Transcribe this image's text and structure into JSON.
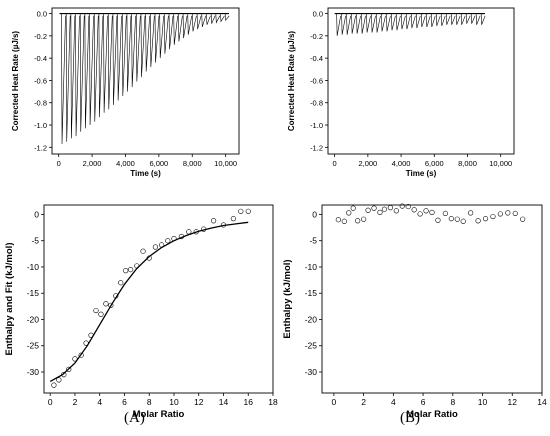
{
  "panel_labels": [
    "(A)",
    "(B)"
  ],
  "chart_data": [
    {
      "type": "line",
      "panel": "A-top",
      "xlabel": "Time (s)",
      "ylabel": "Corrected Heat Rate (µJ/s)",
      "xlim": [
        -400,
        10800
      ],
      "ylim": [
        -1.26,
        0.05
      ],
      "xticks": [
        0,
        2000,
        4000,
        6000,
        8000,
        10000
      ],
      "xtick_labels": [
        "0",
        "2,000",
        "4,000",
        "6,000",
        "8,000",
        "10,000"
      ],
      "yticks": [
        0.0,
        -0.2,
        -0.4,
        -0.6,
        -0.8,
        -1.0,
        -1.2
      ],
      "ytick_labels": [
        "0.0",
        "-0.2",
        "-0.4",
        "-0.6",
        "-0.8",
        "-1.0",
        "-1.2"
      ],
      "series": [
        {
          "x": [
            200,
            480,
            760,
            1040,
            1320,
            1600,
            1880,
            2160,
            2440,
            2720,
            3000,
            3280,
            3560,
            3840,
            4120,
            4400,
            4680,
            4960,
            5240,
            5520,
            5800,
            6080,
            6360,
            6640,
            6920,
            7200,
            7480,
            7760,
            8040,
            8320,
            8600,
            8880,
            9160,
            9440,
            9720,
            10000
          ],
          "values": [
            -1.17,
            -1.15,
            -1.12,
            -1.1,
            -1.06,
            -1.03,
            -1.0,
            -0.97,
            -0.93,
            -0.89,
            -0.86,
            -0.82,
            -0.78,
            -0.74,
            -0.7,
            -0.66,
            -0.61,
            -0.57,
            -0.52,
            -0.48,
            -0.44,
            -0.4,
            -0.36,
            -0.32,
            -0.28,
            -0.25,
            -0.22,
            -0.19,
            -0.16,
            -0.14,
            -0.12,
            -0.1,
            -0.09,
            -0.08,
            -0.07,
            -0.06
          ]
        }
      ]
    },
    {
      "type": "line",
      "panel": "B-top",
      "xlabel": "Time (s)",
      "ylabel": "Corrected Heat Rate (µJ/s)",
      "xlim": [
        -400,
        10800
      ],
      "ylim": [
        -1.26,
        0.05
      ],
      "xticks": [
        0,
        2000,
        4000,
        6000,
        8000,
        10000
      ],
      "xtick_labels": [
        "0",
        "2,000",
        "4,000",
        "6,000",
        "8,000",
        "10,000"
      ],
      "yticks": [
        0.0,
        -0.2,
        -0.4,
        -0.6,
        -0.8,
        -1.0,
        -1.2
      ],
      "ytick_labels": [
        "0.0",
        "-0.2",
        "-0.4",
        "-0.6",
        "-0.8",
        "-1.0",
        "-1.2"
      ],
      "series": [
        {
          "x": [
            150,
            450,
            750,
            1050,
            1350,
            1650,
            1950,
            2250,
            2550,
            2850,
            3150,
            3450,
            3750,
            4050,
            4350,
            4650,
            4950,
            5250,
            5550,
            5850,
            6150,
            6450,
            6750,
            7050,
            7350,
            7650,
            7950,
            8250,
            8550,
            8850
          ],
          "values": [
            -0.2,
            -0.19,
            -0.19,
            -0.18,
            -0.18,
            -0.18,
            -0.17,
            -0.17,
            -0.17,
            -0.16,
            -0.16,
            -0.15,
            -0.15,
            -0.14,
            -0.14,
            -0.13,
            -0.13,
            -0.12,
            -0.12,
            -0.12,
            -0.11,
            -0.11,
            -0.1,
            -0.1,
            -0.1,
            -0.1,
            -0.09,
            -0.09,
            -0.1,
            -0.1
          ]
        }
      ]
    },
    {
      "type": "scatter",
      "panel": "A-bottom",
      "xlabel": "Molar Ratio",
      "ylabel": "Enthalpy and Fit (kJ/mol)",
      "xlim": [
        -0.5,
        18
      ],
      "ylim": [
        -34,
        1.8
      ],
      "xticks": [
        0,
        2,
        4,
        6,
        8,
        10,
        12,
        14,
        16,
        18
      ],
      "xtick_labels": [
        "0",
        "2",
        "4",
        "6",
        "8",
        "10",
        "12",
        "14",
        "16",
        "18"
      ],
      "yticks": [
        0,
        -5,
        -10,
        -15,
        -20,
        -25,
        -30
      ],
      "ytick_labels": [
        "0",
        "-5",
        "-10",
        "-15",
        "-20",
        "-25",
        "-30"
      ],
      "series": [
        {
          "x": [
            0.3,
            0.7,
            1.1,
            1.5,
            2.0,
            2.5,
            2.9,
            3.3,
            3.7,
            4.1,
            4.5,
            4.9,
            5.3,
            5.7,
            6.1,
            6.5,
            7.0,
            7.5,
            8.0,
            8.5,
            9.0,
            9.5,
            10.0,
            10.6,
            11.2,
            11.8,
            12.4,
            13.2,
            14.0,
            14.8,
            15.4,
            16.0
          ],
          "values": [
            -32.5,
            -31.5,
            -30.5,
            -29.5,
            -27.5,
            -26.8,
            -24.5,
            -23.0,
            -18.3,
            -19.0,
            -17.0,
            -17.3,
            -15.5,
            -13.0,
            -10.7,
            -10.5,
            -9.8,
            -7.0,
            -8.3,
            -6.2,
            -5.8,
            -5.0,
            -4.6,
            -4.2,
            -3.3,
            -3.3,
            -2.8,
            -1.2,
            -2.0,
            -0.8,
            0.6,
            0.6
          ]
        },
        {
          "type": "line",
          "x": [
            0.0,
            1.0,
            2.0,
            3.0,
            4.0,
            5.0,
            6.0,
            7.0,
            8.0,
            9.0,
            10.0,
            11.0,
            12.0,
            13.0,
            14.0,
            15.0,
            16.0
          ],
          "values": [
            -31.8,
            -30.5,
            -28.3,
            -25.0,
            -21.0,
            -17.0,
            -13.3,
            -10.3,
            -8.0,
            -6.3,
            -5.0,
            -4.0,
            -3.2,
            -2.6,
            -2.1,
            -1.8,
            -1.5
          ]
        }
      ]
    },
    {
      "type": "scatter",
      "panel": "B-bottom",
      "xlabel": "Molar Ratio",
      "ylabel": "Enthalpy (kJ/mol)",
      "xlim": [
        -0.8,
        14
      ],
      "ylim": [
        -34,
        1.8
      ],
      "xticks": [
        0,
        2,
        4,
        6,
        8,
        10,
        12,
        14
      ],
      "xtick_labels": [
        "0",
        "2",
        "4",
        "6",
        "8",
        "10",
        "12",
        "14"
      ],
      "yticks": [
        0,
        -5,
        -10,
        -15,
        -20,
        -25,
        -30
      ],
      "ytick_labels": [
        "0",
        "-5",
        "-10",
        "-15",
        "-20",
        "-25",
        "-30"
      ],
      "series": [
        {
          "x": [
            0.3,
            0.7,
            1.0,
            1.3,
            1.6,
            2.0,
            2.3,
            2.7,
            3.1,
            3.4,
            3.8,
            4.2,
            4.6,
            5.0,
            5.4,
            5.8,
            6.2,
            6.6,
            7.0,
            7.5,
            7.9,
            8.3,
            8.7,
            9.2,
            9.7,
            10.2,
            10.7,
            11.2,
            11.7,
            12.2,
            12.7
          ],
          "values": [
            -1.0,
            -1.3,
            0.3,
            1.2,
            -1.2,
            -0.9,
            0.8,
            1.2,
            0.4,
            1.0,
            1.3,
            0.7,
            1.6,
            1.5,
            0.9,
            0.1,
            0.7,
            0.4,
            -1.1,
            0.2,
            -0.8,
            -0.9,
            -1.3,
            0.3,
            -1.2,
            -0.8,
            -0.4,
            0.1,
            0.3,
            0.2,
            -0.9
          ]
        }
      ]
    }
  ]
}
